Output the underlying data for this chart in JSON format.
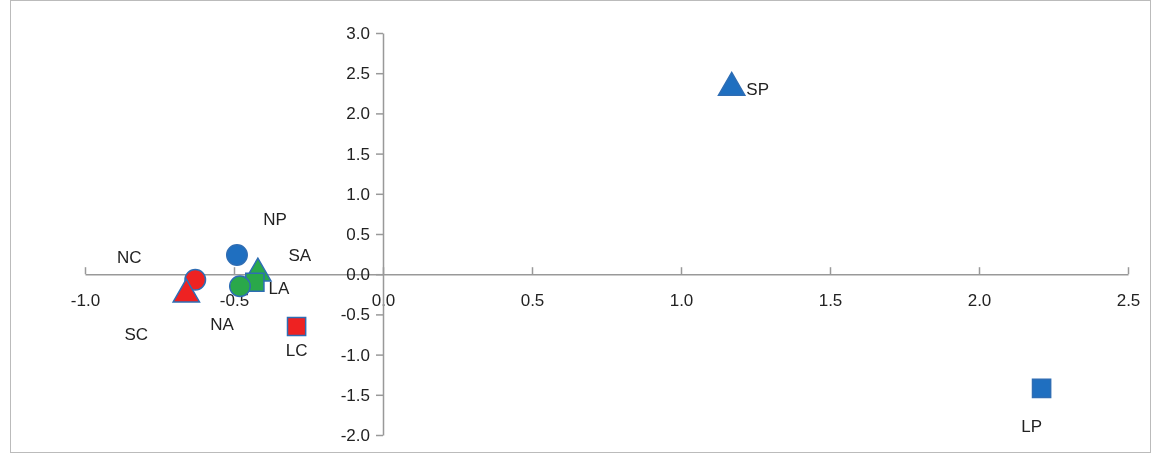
{
  "chart_data": {
    "type": "scatter",
    "xlim": [
      -1,
      2.5
    ],
    "ylim": [
      -2,
      3
    ],
    "grid": false,
    "xticks": [
      {
        "value": -1,
        "label": "-1.0"
      },
      {
        "value": -0.5,
        "label": "-0.5"
      },
      {
        "value": 0,
        "label": "0.0"
      },
      {
        "value": 0.5,
        "label": "0.5"
      },
      {
        "value": 1,
        "label": "1.0"
      },
      {
        "value": 1.5,
        "label": "1.5"
      },
      {
        "value": 2,
        "label": "2.0"
      },
      {
        "value": 2.5,
        "label": "2.5"
      }
    ],
    "yticks": [
      {
        "value": -2,
        "label": "-2.0"
      },
      {
        "value": -1.5,
        "label": "-1.5"
      },
      {
        "value": -1,
        "label": "-1.0"
      },
      {
        "value": -0.5,
        "label": "-0.5"
      },
      {
        "value": 0,
        "label": "0.0"
      },
      {
        "value": 0.5,
        "label": "0.5"
      },
      {
        "value": 1,
        "label": "1.0"
      },
      {
        "value": 1.5,
        "label": "1.5"
      },
      {
        "value": 2,
        "label": "2.0"
      },
      {
        "value": 2.5,
        "label": "2.5"
      },
      {
        "value": 3,
        "label": "3.0"
      }
    ],
    "series": [
      {
        "name": "SP",
        "color": "#1f6fc0",
        "marker": "triangle",
        "x": [
          1.17
        ],
        "values": [
          2.32
        ]
      },
      {
        "name": "LP",
        "color": "#1f6fc0",
        "marker": "square",
        "x": [
          2.21
        ],
        "values": [
          -1.42
        ]
      },
      {
        "name": "NP",
        "color": "#1f6fc0",
        "marker": "circle",
        "x": [
          -0.49
        ],
        "values": [
          0.24
        ]
      },
      {
        "name": "SA",
        "color": "#2aa84a",
        "marker": "triangle",
        "x": [
          -0.42
        ],
        "values": [
          0.01
        ]
      },
      {
        "name": "LA",
        "color": "#2aa84a",
        "marker": "square",
        "x": [
          -0.43
        ],
        "values": [
          -0.1
        ]
      },
      {
        "name": "NA",
        "color": "#2aa84a",
        "marker": "circle",
        "x": [
          -0.48
        ],
        "values": [
          -0.15
        ]
      },
      {
        "name": "NC",
        "color": "#ee2222",
        "marker": "circle",
        "x": [
          -0.63
        ],
        "values": [
          -0.07
        ]
      },
      {
        "name": "SC",
        "color": "#ee2222",
        "marker": "triangle",
        "x": [
          -0.66
        ],
        "values": [
          -0.25
        ]
      },
      {
        "name": "LC",
        "color": "#ee2222",
        "marker": "square",
        "x": [
          -0.29
        ],
        "values": [
          -0.65
        ]
      }
    ]
  }
}
